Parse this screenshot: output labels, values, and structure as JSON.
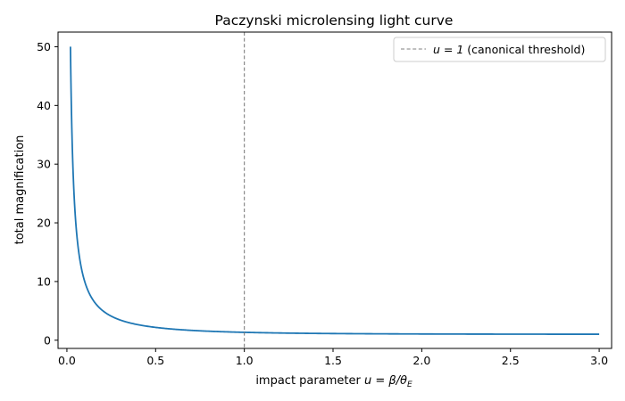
{
  "chart_data": {
    "type": "line",
    "title": "Paczynski microlensing light curve",
    "xlabel_prefix": "impact parameter ",
    "xlabel_math": "u = β/θ",
    "xlabel_sub": "E",
    "ylabel": "total magnification",
    "xlim": [
      -0.05,
      3.07
    ],
    "ylim": [
      -1.4,
      52.5
    ],
    "xticks": [
      0.0,
      0.5,
      1.0,
      1.5,
      2.0,
      2.5,
      3.0
    ],
    "xtick_labels": [
      "0.0",
      "0.5",
      "1.0",
      "1.5",
      "2.0",
      "2.5",
      "3.0"
    ],
    "yticks": [
      0,
      10,
      20,
      30,
      40,
      50
    ],
    "ytick_labels": [
      "0",
      "10",
      "20",
      "30",
      "40",
      "50"
    ],
    "series": [
      {
        "color": "#1f77b4",
        "function": "A(u) = (u^2 + 2) / (u * sqrt(u^2 + 4))",
        "x_range": [
          0.02,
          3.0
        ]
      }
    ],
    "threshold_line": {
      "x": 1.0,
      "color": "#7f7f7f",
      "style": "dashed",
      "legend_math": "u = 1",
      "legend_text": " (canonical threshold)"
    },
    "legend_position": "upper right",
    "grid": false
  }
}
